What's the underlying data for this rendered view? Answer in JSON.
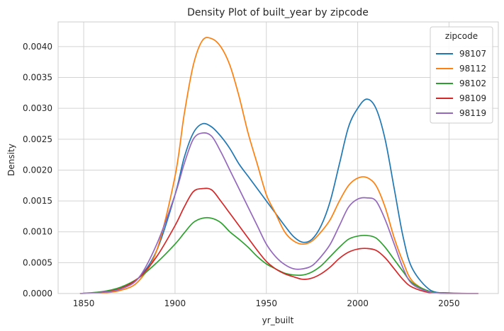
{
  "chart_data": {
    "type": "line",
    "title": "Density Plot of built_year by zipcode",
    "xlabel": "yr_built",
    "ylabel": "Density",
    "xlim": [
      1836,
      2077
    ],
    "ylim": [
      0,
      0.0044
    ],
    "xticks": [
      1850,
      1900,
      1950,
      2000,
      2050
    ],
    "xtick_labels": [
      "1850",
      "1900",
      "1950",
      "2000",
      "2050"
    ],
    "yticks": [
      0,
      0.0005,
      0.001,
      0.0015,
      0.002,
      0.0025,
      0.003,
      0.0035,
      0.004
    ],
    "ytick_labels": [
      "0.0000",
      "0.0005",
      "0.0010",
      "0.0015",
      "0.0020",
      "0.0025",
      "0.0030",
      "0.0035",
      "0.0040"
    ],
    "grid": true,
    "legend": {
      "title": "zipcode",
      "placement": "top-right"
    },
    "x": [
      1848,
      1860,
      1870,
      1880,
      1890,
      1900,
      1905,
      1910,
      1915,
      1920,
      1925,
      1930,
      1935,
      1940,
      1945,
      1950,
      1955,
      1960,
      1965,
      1970,
      1975,
      1980,
      1985,
      1990,
      1995,
      2000,
      2005,
      2010,
      2015,
      2020,
      2025,
      2030,
      2040,
      2050,
      2066
    ],
    "series": [
      {
        "name": "98107",
        "color": "#1f77b4",
        "values": [
          0,
          2e-05,
          7e-05,
          0.00025,
          0.0007,
          0.0016,
          0.0022,
          0.0026,
          0.00275,
          0.0027,
          0.00255,
          0.00235,
          0.0021,
          0.0019,
          0.0017,
          0.0015,
          0.0013,
          0.0011,
          0.00092,
          0.00083,
          0.00088,
          0.0011,
          0.0015,
          0.0021,
          0.0027,
          0.003,
          0.00315,
          0.003,
          0.0025,
          0.0017,
          0.0009,
          0.0004,
          5e-05,
          1e-05,
          0
        ]
      },
      {
        "name": "98112",
        "color": "#ff7f0e",
        "values": [
          0,
          1e-05,
          5e-05,
          0.0002,
          0.0007,
          0.0019,
          0.0029,
          0.0037,
          0.0041,
          0.00413,
          0.004,
          0.0037,
          0.0032,
          0.0026,
          0.0021,
          0.0016,
          0.0013,
          0.001,
          0.00085,
          0.0008,
          0.00085,
          0.001,
          0.0012,
          0.0015,
          0.00175,
          0.00187,
          0.00188,
          0.00175,
          0.0014,
          0.0009,
          0.0005,
          0.0002,
          2e-05,
          0,
          0
        ]
      },
      {
        "name": "98102",
        "color": "#2ca02c",
        "values": [
          0,
          3e-05,
          0.0001,
          0.00025,
          0.0005,
          0.0008,
          0.00098,
          0.00115,
          0.00122,
          0.00122,
          0.00115,
          0.001,
          0.00088,
          0.00075,
          0.0006,
          0.00048,
          0.0004,
          0.00033,
          0.0003,
          0.0003,
          0.00035,
          0.00045,
          0.0006,
          0.00075,
          0.00088,
          0.00093,
          0.00094,
          0.0009,
          0.00075,
          0.00055,
          0.00035,
          0.00017,
          3e-05,
          0,
          0
        ]
      },
      {
        "name": "98109",
        "color": "#d62728",
        "values": [
          0,
          2e-05,
          8e-05,
          0.00025,
          0.0006,
          0.0011,
          0.0014,
          0.00165,
          0.0017,
          0.00168,
          0.0015,
          0.0013,
          0.0011,
          0.0009,
          0.0007,
          0.00052,
          0.0004,
          0.00032,
          0.00027,
          0.00023,
          0.00025,
          0.00032,
          0.00043,
          0.00057,
          0.00067,
          0.00072,
          0.00073,
          0.0007,
          0.00058,
          0.0004,
          0.00022,
          0.0001,
          1e-05,
          0,
          0
        ]
      },
      {
        "name": "98119",
        "color": "#9467bd",
        "values": [
          0,
          2e-05,
          7e-05,
          0.00025,
          0.0008,
          0.0016,
          0.0021,
          0.0025,
          0.0026,
          0.00255,
          0.0023,
          0.002,
          0.0017,
          0.0014,
          0.0011,
          0.0008,
          0.0006,
          0.00047,
          0.0004,
          0.0004,
          0.00045,
          0.0006,
          0.0008,
          0.0011,
          0.0014,
          0.00153,
          0.00155,
          0.0015,
          0.0012,
          0.0008,
          0.0004,
          0.00015,
          2e-05,
          0,
          0
        ]
      }
    ]
  }
}
